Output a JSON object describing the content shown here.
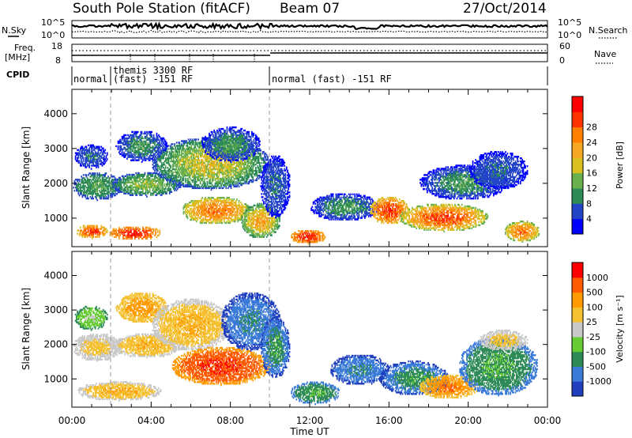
{
  "header": {
    "title": "South Pole Station (fitACF)",
    "beam": "Beam 07",
    "date": "27/Oct/2014"
  },
  "noise_panel": {
    "left_label": "N.Sky",
    "right_label": "N.Search",
    "left_ticks": [
      "10^5",
      "10^0"
    ],
    "right_ticks": [
      "10^5",
      "10^0"
    ]
  },
  "freq_panel": {
    "left_label_1": "Freq.",
    "left_label_2": "[MHz]",
    "right_label": "Nave",
    "left_ticks": [
      "18",
      "8"
    ],
    "right_ticks": [
      "60",
      "0"
    ]
  },
  "cpid_panel": {
    "label": "CPID",
    "segments": [
      {
        "text": "normal"
      },
      {
        "text": "themis 3300 RF"
      },
      {
        "text": "(fast) -151 RF"
      },
      {
        "text": "normal (fast) -151 RF"
      }
    ]
  },
  "chart_data": [
    {
      "type": "heatmap",
      "name": "power",
      "ylabel": "Slant Range [km]",
      "xlabel": "Time UT",
      "x_ticks": [
        "00:00",
        "04:00",
        "08:00",
        "12:00",
        "16:00",
        "20:00",
        "00:00"
      ],
      "y_ticks": [
        "1000",
        "2000",
        "3000",
        "4000"
      ],
      "y_tick_values": [
        1000,
        2000,
        3000,
        4000
      ],
      "ylim": [
        180,
        4700
      ],
      "xlim_hours": [
        0,
        24
      ],
      "colorbar": {
        "label": "Power [dB]",
        "ticks": [
          "4",
          "8",
          "12",
          "16",
          "20",
          "24",
          "28"
        ],
        "colors": [
          "#0000ff",
          "#2444c8",
          "#2e8b57",
          "#6ab04c",
          "#d8c020",
          "#f5a623",
          "#ff7f00",
          "#ff3300",
          "#ff0000"
        ]
      },
      "regions": [
        {
          "t0": 0.0,
          "t1": 2.5,
          "r0": 1500,
          "r1": 2300,
          "lvl": [
            1,
            3
          ]
        },
        {
          "t0": 0.1,
          "t1": 1.8,
          "r0": 2400,
          "r1": 3100,
          "lvl": [
            0,
            2
          ]
        },
        {
          "t0": 0.2,
          "t1": 1.8,
          "r0": 400,
          "r1": 800,
          "lvl": [
            4,
            8
          ]
        },
        {
          "t0": 1.8,
          "t1": 4.5,
          "r0": 350,
          "r1": 750,
          "lvl": [
            5,
            8
          ]
        },
        {
          "t0": 2.0,
          "t1": 5.5,
          "r0": 1600,
          "r1": 2300,
          "lvl": [
            1,
            4
          ]
        },
        {
          "t0": 2.2,
          "t1": 4.8,
          "r0": 2600,
          "r1": 3500,
          "lvl": [
            0,
            3
          ]
        },
        {
          "t0": 4.0,
          "t1": 10.0,
          "r0": 1800,
          "r1": 3300,
          "lvl": [
            1,
            5
          ]
        },
        {
          "t0": 5.5,
          "t1": 9.0,
          "r0": 800,
          "r1": 1600,
          "lvl": [
            3,
            7
          ]
        },
        {
          "t0": 6.5,
          "t1": 9.5,
          "r0": 2600,
          "r1": 3600,
          "lvl": [
            0,
            3
          ]
        },
        {
          "t0": 8.5,
          "t1": 10.5,
          "r0": 400,
          "r1": 1400,
          "lvl": [
            2,
            6
          ]
        },
        {
          "t0": 9.5,
          "t1": 11.0,
          "r0": 1000,
          "r1": 2800,
          "lvl": [
            0,
            2
          ]
        },
        {
          "t0": 11.0,
          "t1": 12.8,
          "r0": 250,
          "r1": 650,
          "lvl": [
            5,
            8
          ]
        },
        {
          "t0": 12.0,
          "t1": 15.5,
          "r0": 900,
          "r1": 1700,
          "lvl": [
            0,
            3
          ]
        },
        {
          "t0": 15.0,
          "t1": 17.0,
          "r0": 800,
          "r1": 1600,
          "lvl": [
            4,
            8
          ]
        },
        {
          "t0": 16.5,
          "t1": 21.0,
          "r0": 600,
          "r1": 1400,
          "lvl": [
            3,
            8
          ]
        },
        {
          "t0": 17.5,
          "t1": 22.0,
          "r0": 1500,
          "r1": 2500,
          "lvl": [
            0,
            3
          ]
        },
        {
          "t0": 20.0,
          "t1": 23.0,
          "r0": 1800,
          "r1": 2900,
          "lvl": [
            0,
            2
          ]
        },
        {
          "t0": 21.8,
          "t1": 23.6,
          "r0": 300,
          "r1": 900,
          "lvl": [
            3,
            7
          ]
        }
      ]
    },
    {
      "type": "heatmap",
      "name": "velocity",
      "ylabel": "Slant Range [km]",
      "xlabel": "Time UT",
      "x_ticks": [
        "00:00",
        "04:00",
        "08:00",
        "12:00",
        "16:00",
        "20:00",
        "00:00"
      ],
      "y_ticks": [
        "1000",
        "2000",
        "3000",
        "4000"
      ],
      "y_tick_values": [
        1000,
        2000,
        3000,
        4000
      ],
      "ylim": [
        180,
        4700
      ],
      "xlim_hours": [
        0,
        24
      ],
      "colorbar": {
        "label": "Velocity [m s⁻¹]",
        "ticks": [
          "1000",
          "500",
          "100",
          "25",
          "-25",
          "-100",
          "-500",
          "-1000"
        ],
        "colors": [
          "#1f3fbf",
          "#3a7ad8",
          "#2e8b57",
          "#66cc33",
          "#c8c8c8",
          "#f5c030",
          "#ff9a00",
          "#ff5a00",
          "#ff0000"
        ]
      },
      "regions": [
        {
          "t0": 0.0,
          "t1": 2.5,
          "r0": 1500,
          "r1": 2300,
          "lvl": [
            4,
            5
          ]
        },
        {
          "t0": 0.1,
          "t1": 1.8,
          "r0": 2400,
          "r1": 3100,
          "lvl": [
            2,
            4
          ]
        },
        {
          "t0": 0.2,
          "t1": 4.5,
          "r0": 350,
          "r1": 900,
          "lvl": [
            4,
            6
          ]
        },
        {
          "t0": 2.0,
          "t1": 5.5,
          "r0": 1600,
          "r1": 2300,
          "lvl": [
            4,
            6
          ]
        },
        {
          "t0": 2.2,
          "t1": 4.8,
          "r0": 2600,
          "r1": 3500,
          "lvl": [
            5,
            6
          ]
        },
        {
          "t0": 4.0,
          "t1": 8.0,
          "r0": 1800,
          "r1": 3300,
          "lvl": [
            4,
            6
          ]
        },
        {
          "t0": 5.0,
          "t1": 10.0,
          "r0": 800,
          "r1": 1900,
          "lvl": [
            6,
            8
          ]
        },
        {
          "t0": 7.5,
          "t1": 10.5,
          "r0": 1800,
          "r1": 3500,
          "lvl": [
            0,
            2
          ]
        },
        {
          "t0": 9.5,
          "t1": 11.0,
          "r0": 1000,
          "r1": 2800,
          "lvl": [
            0,
            3
          ]
        },
        {
          "t0": 11.0,
          "t1": 13.5,
          "r0": 250,
          "r1": 900,
          "lvl": [
            1,
            3
          ]
        },
        {
          "t0": 13.0,
          "t1": 16.0,
          "r0": 800,
          "r1": 1700,
          "lvl": [
            0,
            2
          ]
        },
        {
          "t0": 15.5,
          "t1": 19.0,
          "r0": 500,
          "r1": 1500,
          "lvl": [
            0,
            3
          ]
        },
        {
          "t0": 17.5,
          "t1": 20.5,
          "r0": 400,
          "r1": 1100,
          "lvl": [
            5,
            7
          ]
        },
        {
          "t0": 19.5,
          "t1": 23.5,
          "r0": 500,
          "r1": 2200,
          "lvl": [
            1,
            3
          ]
        },
        {
          "t0": 20.5,
          "t1": 23.0,
          "r0": 1800,
          "r1": 2400,
          "lvl": [
            4,
            5
          ]
        }
      ]
    }
  ],
  "colors": {
    "axis": "#000000",
    "missing": "#ffffff"
  }
}
